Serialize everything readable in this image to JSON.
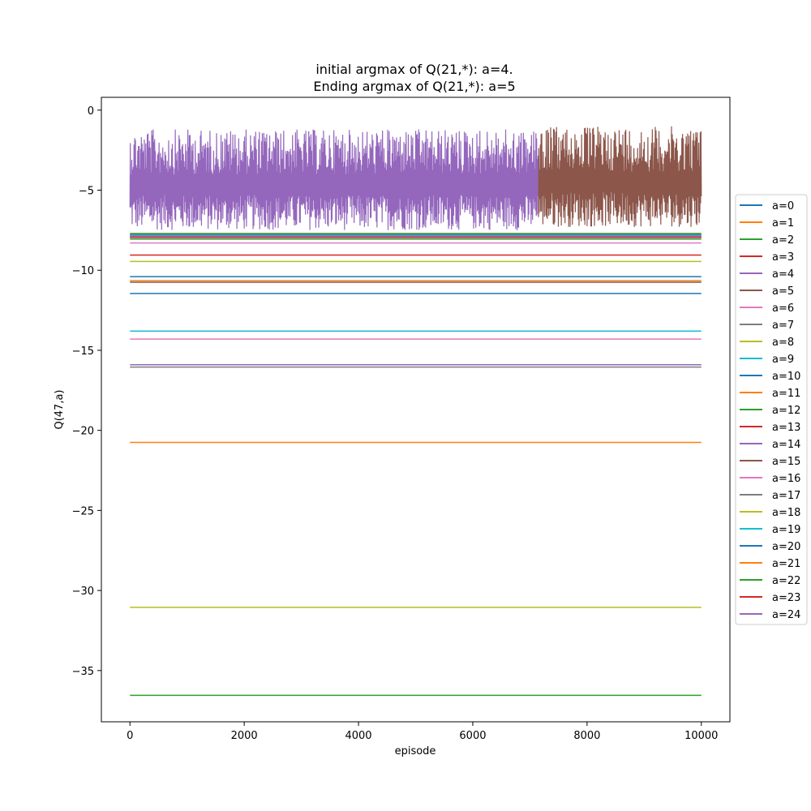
{
  "chart_data": {
    "type": "line",
    "title_line1": "initial argmax of Q(21,*): a=4.",
    "title_line2": "Ending argmax of Q(21,*): a=5",
    "xlabel": "episode",
    "ylabel": "Q(47,a)",
    "xlim": [
      -500,
      10500
    ],
    "ylim": [
      -38.2,
      0.8
    ],
    "xticks": [
      0,
      2000,
      4000,
      6000,
      8000,
      10000
    ],
    "yticks": [
      0,
      -5,
      -10,
      -15,
      -20,
      -25,
      -30,
      -35
    ],
    "tick_labels_x": [
      "0",
      "2000",
      "4000",
      "6000",
      "8000",
      "10000"
    ],
    "tick_labels_y": [
      "0",
      "−5",
      "−10",
      "−15",
      "−20",
      "−25",
      "−30",
      "−35"
    ],
    "grid": false,
    "legend_position": "right, outside plot",
    "x_range": [
      0,
      10000
    ],
    "series": [
      {
        "name": "a=0",
        "color": "#1f77b4",
        "value": -7.8
      },
      {
        "name": "a=1",
        "color": "#ff7f0e",
        "value": -7.9
      },
      {
        "name": "a=2",
        "color": "#2ca02c",
        "value": -7.7
      },
      {
        "name": "a=3",
        "color": "#d62728",
        "value": -7.95
      },
      {
        "name": "a=4",
        "color": "#9467bd",
        "oscillating": true,
        "x_end": 7150,
        "band": [
          -7.5,
          -1.2
        ]
      },
      {
        "name": "a=5",
        "color": "#8c564b",
        "oscillating": true,
        "x_start": 7150,
        "x_end": 10000,
        "band": [
          -7.3,
          -1.0
        ]
      },
      {
        "name": "a=6",
        "color": "#e377c2",
        "value": -8.3
      },
      {
        "name": "a=7",
        "color": "#7f7f7f",
        "value": -7.75
      },
      {
        "name": "a=8",
        "color": "#bcbd22",
        "value": -9.45
      },
      {
        "name": "a=9",
        "color": "#17becf",
        "value": -7.85
      },
      {
        "name": "a=10",
        "color": "#1f77b4",
        "value": -10.4
      },
      {
        "name": "a=11",
        "color": "#ff7f0e",
        "value": -10.65
      },
      {
        "name": "a=12",
        "color": "#2ca02c",
        "value": -8.05
      },
      {
        "name": "a=13",
        "color": "#d62728",
        "value": -9.05
      },
      {
        "name": "a=14",
        "color": "#9467bd",
        "value": -7.9
      },
      {
        "name": "a=15",
        "color": "#8c564b",
        "value": -10.75
      },
      {
        "name": "a=16",
        "color": "#e377c2",
        "value": -14.3
      },
      {
        "name": "a=17",
        "color": "#7f7f7f",
        "value": -16.05
      },
      {
        "name": "a=18",
        "color": "#bcbd22",
        "value": -31.05
      },
      {
        "name": "a=19",
        "color": "#17becf",
        "value": -13.8
      },
      {
        "name": "a=20",
        "color": "#1f77b4",
        "value": -11.45
      },
      {
        "name": "a=21",
        "color": "#ff7f0e",
        "value": -20.75
      },
      {
        "name": "a=22",
        "color": "#2ca02c",
        "value": -36.55
      },
      {
        "name": "a=23",
        "color": "#d62728",
        "value": -7.95
      },
      {
        "name": "a=24",
        "color": "#9467bd",
        "value": -15.9
      }
    ]
  }
}
